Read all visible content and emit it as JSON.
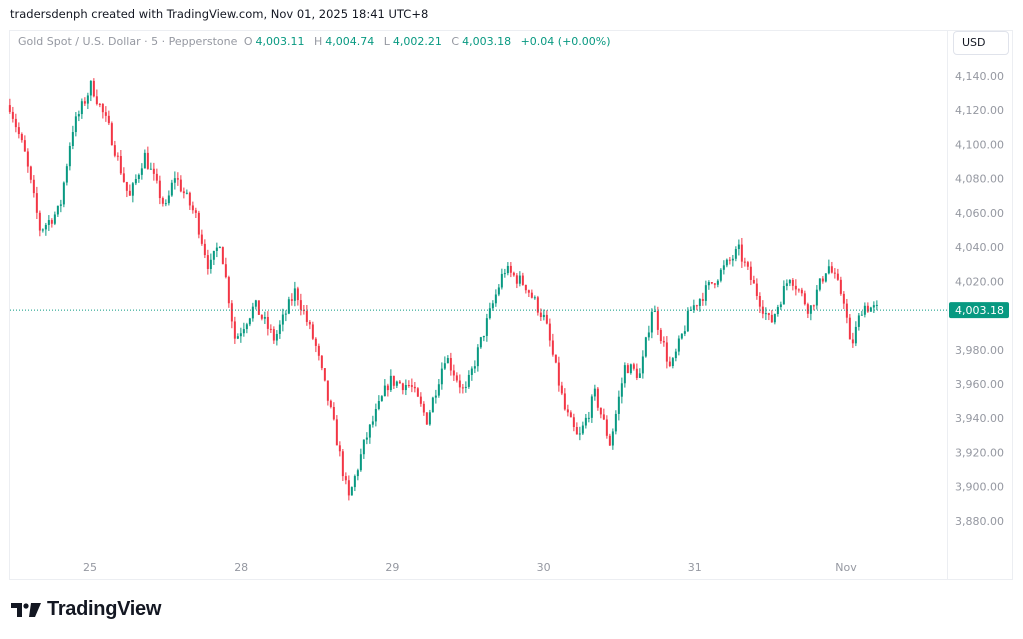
{
  "header": {
    "credit": "tradersdenph created with TradingView.com, Nov 01, 2025 18:41 UTC+8"
  },
  "legend": {
    "symbol": "Gold Spot / U.S. Dollar · 5 · Pepperstone",
    "o_label": "O",
    "o": "4,003.11",
    "h_label": "H",
    "h": "4,004.74",
    "l_label": "L",
    "l": "4,002.21",
    "c_label": "C",
    "c": "4,003.18",
    "change": "+0.04 (+0.00%)"
  },
  "currency_button": "USD",
  "logo_text": "TradingView",
  "colors": {
    "up": "#089981",
    "down": "#f23645",
    "axis_text": "#9598a1"
  },
  "chart_data": {
    "type": "candlestick",
    "title": "Gold Spot / U.S. Dollar · 5 · Pepperstone",
    "ylabel": "USD",
    "ylim": [
      3870,
      4150
    ],
    "yticks": [
      4140,
      4120,
      4100,
      4080,
      4060,
      4040,
      4020,
      3980,
      3960,
      3940,
      3920,
      3900,
      3880
    ],
    "ytick_labels": [
      "4,140.00",
      "4,120.00",
      "4,100.00",
      "4,080.00",
      "4,060.00",
      "4,040.00",
      "4,020.00",
      "3,980.00",
      "3,960.00",
      "3,940.00",
      "3,920.00",
      "3,900.00",
      "3,880.00"
    ],
    "xticks": [
      0,
      1,
      2,
      3,
      4,
      5
    ],
    "xtick_labels": [
      "25",
      "28",
      "29",
      "30",
      "31",
      "Nov"
    ],
    "last_price": 4003.18,
    "last_price_label": "4,003.18",
    "price_path_t": [
      -0.53,
      -0.43,
      -0.33,
      -0.2,
      -0.12,
      0.01,
      0.13,
      0.26,
      0.36,
      0.5,
      0.56,
      0.7,
      0.79,
      0.86,
      0.96,
      1.09,
      1.22,
      1.36,
      1.49,
      1.62,
      1.71,
      1.82,
      1.98,
      2.12,
      2.23,
      2.35,
      2.48,
      2.61,
      2.74,
      2.88,
      3.01,
      3.14,
      3.23,
      3.34,
      3.44,
      3.54,
      3.64,
      3.72,
      3.84,
      3.97,
      4.13,
      4.29,
      4.43,
      4.5,
      4.63,
      4.76,
      4.88,
      4.99,
      5.03,
      5.11,
      5.21
    ],
    "price_path_close": [
      4123,
      4094,
      4050,
      4062,
      4108,
      4135,
      4108,
      4068,
      4094,
      4062,
      4082,
      4058,
      4027,
      4044,
      3986,
      4006,
      3986,
      4015,
      3983,
      3933,
      3892,
      3927,
      3962,
      3959,
      3939,
      3977,
      3954,
      3992,
      4027,
      4018,
      3997,
      3945,
      3927,
      3954,
      3925,
      3971,
      3965,
      4006,
      3968,
      4003,
      4021,
      4038,
      4009,
      3995,
      4024,
      4003,
      4030,
      4009,
      3980,
      4006,
      4003.18
    ]
  }
}
